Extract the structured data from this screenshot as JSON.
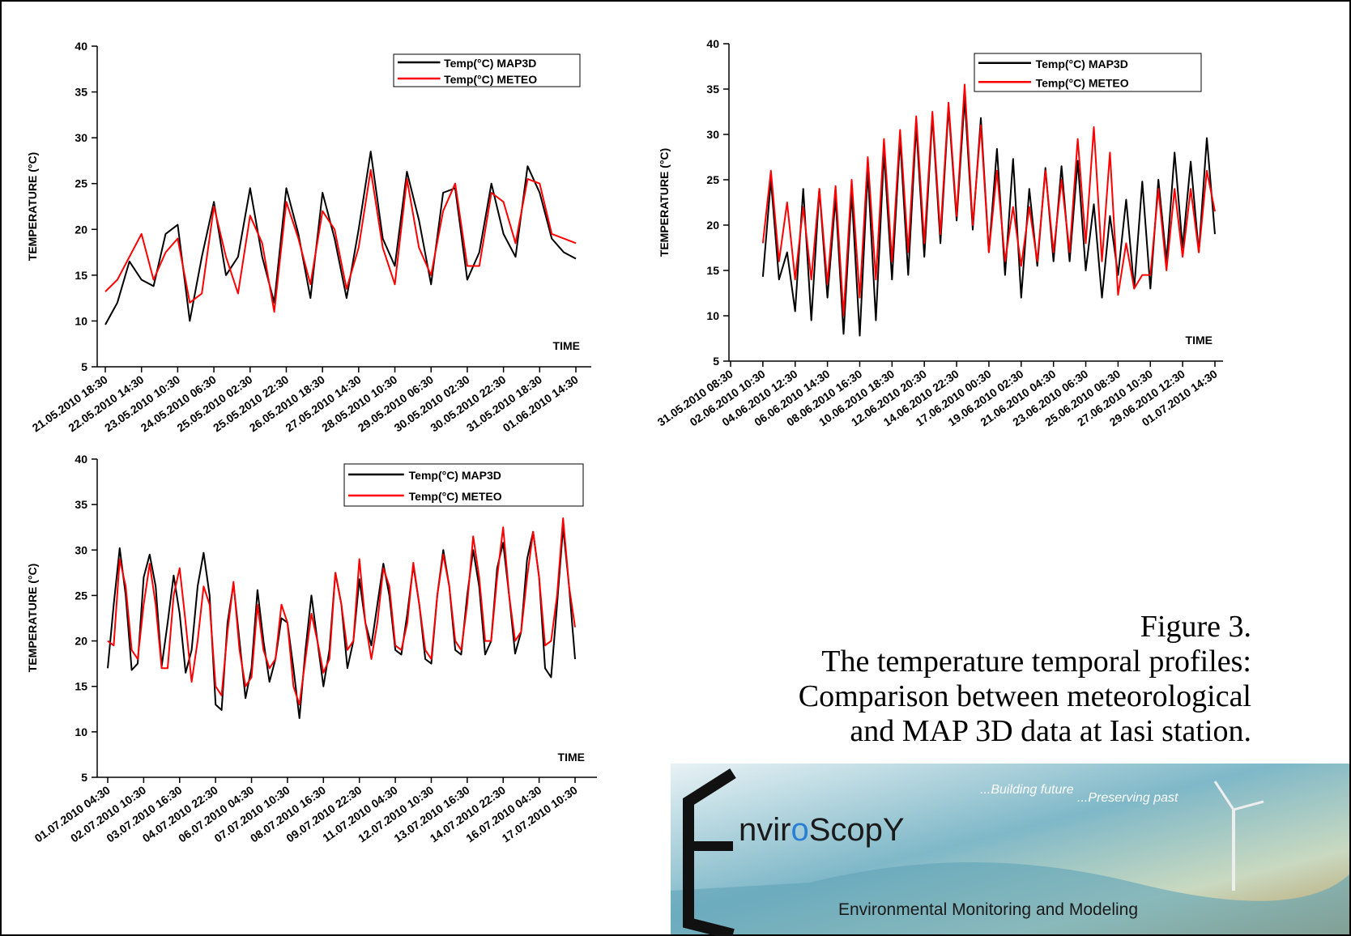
{
  "chart_data": [
    {
      "type": "line",
      "y_label": "TEMPERATURE (°C)",
      "x_label": "TIME",
      "categories": [
        "21.05.2010 18:30",
        null,
        null,
        "22.05.2010 14:30",
        null,
        null,
        "23.05.2010 10:30",
        null,
        null,
        "24.05.2010 06:30",
        null,
        null,
        "25.05.2010 02:30",
        null,
        null,
        "25.05.2010 22:30",
        null,
        null,
        "26.05.2010 18:30",
        null,
        null,
        "27.05.2010 14:30",
        null,
        null,
        "28.05.2010 10:30",
        null,
        null,
        "29.05.2010 06:30",
        null,
        null,
        "30.05.2010 02:30",
        null,
        null,
        "30.05.2010 22:30",
        null,
        null,
        "31.05.2010 18:30",
        null,
        null,
        "01.06.2010 14:30"
      ],
      "series": [
        {
          "name": "Temp(°C) MAP3D",
          "color": "#000000",
          "values": [
            9.6,
            12,
            16.5,
            14.5,
            13.8,
            19.5,
            20.5,
            10,
            17,
            23,
            15,
            17,
            24.5,
            17,
            12,
            24.5,
            19.5,
            12.5,
            24,
            19,
            12.5,
            20,
            28.5,
            19,
            16,
            26.3,
            21,
            14,
            24,
            24.5,
            14.5,
            17.5,
            25,
            19.5,
            17,
            26.9,
            24,
            19,
            17.5,
            16.8
          ]
        },
        {
          "name": "Temp(°C) METEO",
          "color": "#ff0000",
          "values": [
            13.2,
            14.5,
            17,
            19.5,
            14.5,
            17.5,
            19,
            12,
            13,
            22.5,
            17,
            13,
            21.5,
            18.5,
            11,
            23,
            19,
            14,
            22,
            20,
            13.5,
            18,
            26.5,
            18,
            14,
            25.5,
            18,
            15,
            22,
            25,
            16,
            16,
            24,
            23,
            18.5,
            25.5,
            25,
            19.5,
            19,
            18.5
          ]
        }
      ],
      "ylim": [
        5,
        40
      ],
      "yticks": [
        5,
        10,
        15,
        20,
        25,
        30,
        35,
        40
      ],
      "legend": "upper right"
    },
    {
      "type": "line",
      "y_label": "TEMPERATURE (°C)",
      "x_label": "TIME",
      "categories": [
        "31.05.2010 08:30",
        null,
        null,
        null,
        "02.06.2010 10:30",
        null,
        null,
        null,
        "04.06.2010 12:30",
        null,
        null,
        null,
        "06.06.2010 14:30",
        null,
        null,
        null,
        "08.06.2010 16:30",
        null,
        null,
        null,
        "10.06.2010 18:30",
        null,
        null,
        null,
        "12.06.2010 20:30",
        null,
        null,
        null,
        "14.06.2010 22:30",
        null,
        null,
        null,
        "17.06.2010 00:30",
        null,
        null,
        null,
        "19.06.2010 02:30",
        null,
        null,
        null,
        "21.06.2010 04:30",
        null,
        null,
        null,
        "23.06.2010 06:30",
        null,
        null,
        null,
        "25.06.2010 08:30",
        null,
        null,
        null,
        "27.06.2010 10:30",
        null,
        null,
        null,
        "29.06.2010 12:30",
        null,
        null,
        null,
        "01.07.2010 14:30"
      ],
      "series": [
        {
          "name": "Temp(°C) MAP3D",
          "color": "#000000",
          "values": [
            null,
            null,
            null,
            null,
            14.3,
            25,
            14,
            17,
            10.5,
            24,
            9.5,
            24,
            12,
            23,
            8,
            23.5,
            7.8,
            26,
            9.5,
            28,
            14,
            29.5,
            14.5,
            31,
            16.5,
            32,
            18,
            33,
            20.5,
            34,
            19.5,
            31.8,
            17,
            28.4,
            14.5,
            27.3,
            12,
            24,
            15.5,
            26.3,
            16,
            26.5,
            16,
            27.1,
            15,
            22.3,
            12,
            21,
            14.5,
            22.8,
            13,
            24.8,
            13,
            25,
            16,
            28,
            17.5,
            27,
            17,
            29.6,
            19
          ]
        },
        {
          "name": "Temp(°C) METEO",
          "color": "#ff0000",
          "values": [
            null,
            null,
            null,
            null,
            18,
            26,
            16,
            22.5,
            14,
            22,
            14,
            24,
            13.5,
            24.3,
            10,
            25,
            12,
            27.5,
            14,
            29.5,
            16,
            30.5,
            17,
            32,
            18,
            32.5,
            19,
            33.5,
            21,
            35.5,
            20,
            31,
            17,
            26,
            16,
            22,
            15.5,
            22,
            16,
            26,
            17,
            25,
            17,
            29.5,
            18,
            30.8,
            16,
            28,
            12.3,
            18,
            13,
            14.5,
            14.5,
            24,
            15,
            24,
            16.5,
            24,
            17,
            26,
            21.5
          ]
        }
      ],
      "ylim": [
        5,
        40
      ],
      "yticks": [
        5,
        10,
        15,
        20,
        25,
        30,
        35,
        40
      ],
      "legend": "upper right"
    },
    {
      "type": "line",
      "y_label": "TEMPERATURE (°C)",
      "x_label": "TIME",
      "categories": [
        "01.07.2010 04:30",
        null,
        null,
        null,
        null,
        null,
        "02.07.2010 10:30",
        null,
        null,
        null,
        null,
        null,
        "03.07.2010 16:30",
        null,
        null,
        null,
        null,
        null,
        "04.07.2010 22:30",
        null,
        null,
        null,
        null,
        null,
        "06.07.2010 04:30",
        null,
        null,
        null,
        null,
        null,
        "07.07.2010 10:30",
        null,
        null,
        null,
        null,
        null,
        "08.07.2010 16:30",
        null,
        null,
        null,
        null,
        null,
        "09.07.2010 22:30",
        null,
        null,
        null,
        null,
        null,
        "11.07.2010 04:30",
        null,
        null,
        null,
        null,
        null,
        "12.07.2010 10:30",
        null,
        null,
        null,
        null,
        null,
        "13.07.2010 16:30",
        null,
        null,
        null,
        null,
        null,
        "14.07.2010 22:30",
        null,
        null,
        null,
        null,
        null,
        "16.07.2010 04:30",
        null,
        null,
        null,
        null,
        null,
        "17.07.2010 10:30"
      ],
      "series": [
        {
          "name": "Temp(°C) MAP3D",
          "color": "#000000",
          "values": [
            17,
            24,
            30.2,
            25,
            16.8,
            17.5,
            27,
            29.5,
            26,
            17.2,
            22,
            27.2,
            23,
            16.5,
            19,
            26,
            29.7,
            25,
            13,
            12.4,
            22,
            26.3,
            20,
            13.7,
            17,
            25.6,
            20,
            15.5,
            18,
            22.5,
            22,
            17,
            11.5,
            19,
            25,
            20,
            15,
            19,
            27.5,
            24,
            17,
            20,
            26.8,
            22,
            19.5,
            24,
            28.5,
            25,
            19,
            18.5,
            23,
            28.3,
            24,
            18,
            17.5,
            25,
            30,
            26,
            19,
            18.5,
            25,
            30,
            26,
            18.5,
            20,
            28,
            30.8,
            25,
            18.6,
            21,
            29,
            32,
            27,
            17,
            16,
            24,
            32.5,
            26,
            18
          ]
        },
        {
          "name": "Temp(°C) METEO",
          "color": "#ff0000",
          "values": [
            20,
            19.5,
            29,
            26,
            19,
            18,
            24,
            28.5,
            24,
            17,
            17,
            25,
            28,
            22,
            15.5,
            20,
            26,
            24,
            15,
            14,
            21,
            26.5,
            19,
            15,
            16,
            24,
            19,
            17,
            18,
            24,
            22,
            15,
            13,
            18,
            23,
            20,
            16.5,
            18,
            27.5,
            24,
            19,
            20,
            29,
            22,
            18,
            22,
            28,
            26,
            19.5,
            19,
            22,
            28.6,
            24,
            19,
            18,
            25,
            29.5,
            26,
            20,
            19,
            24,
            31.5,
            27,
            20,
            20,
            27,
            32.5,
            25,
            20,
            21,
            27,
            32,
            27,
            19.5,
            20,
            25,
            33.5,
            26,
            21.5
          ]
        }
      ],
      "ylim": [
        5,
        40
      ],
      "yticks": [
        5,
        10,
        15,
        20,
        25,
        30,
        35,
        40
      ],
      "legend": "upper right"
    }
  ],
  "caption": [
    "Figure 3.",
    "The temperature temporal profiles:",
    "Comparison between meteorological",
    "and MAP 3D data at Iasi station."
  ],
  "logo": {
    "brand": [
      "nvir",
      "o",
      "ScopY"
    ],
    "slogan1": "...Building future",
    "slogan2": "...Preserving past",
    "subtitle": "Environmental Monitoring and Modeling"
  }
}
